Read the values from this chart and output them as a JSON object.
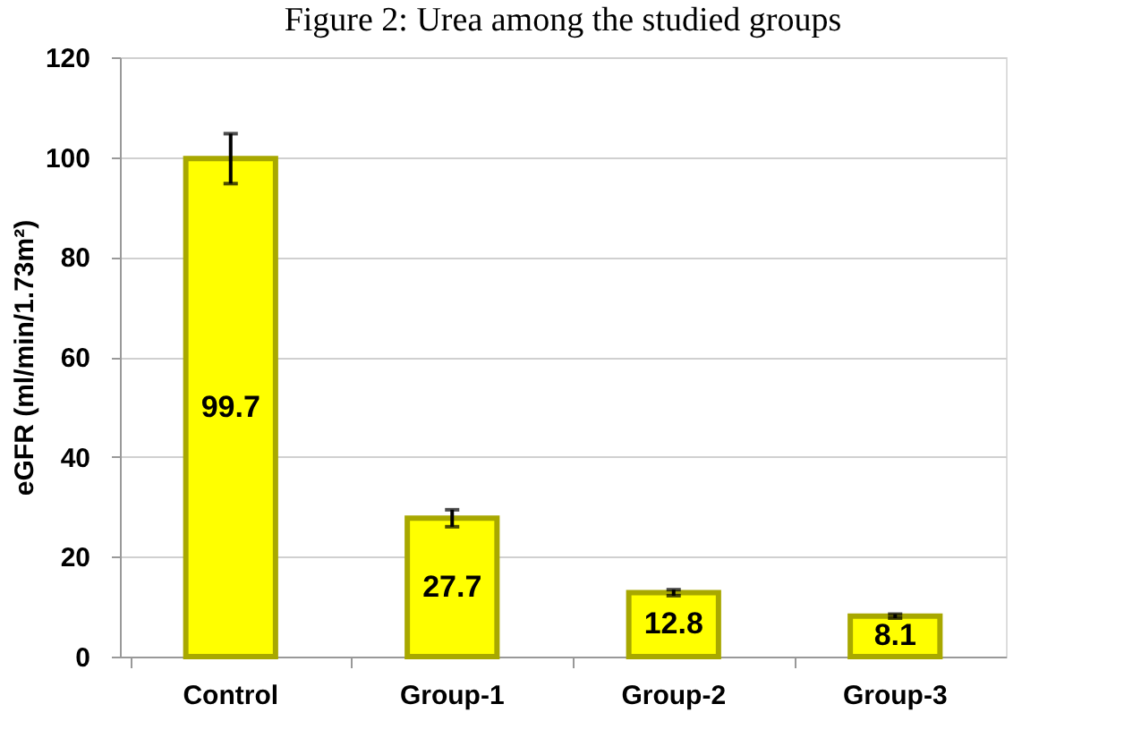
{
  "chart_data": {
    "type": "bar",
    "title": "Figure 2: Urea among the studied groups",
    "ylabel": "eGFR (ml/min/1.73m²)",
    "categories": [
      "Control",
      "Group-1",
      "Group-2",
      "Group-3"
    ],
    "values": [
      99.7,
      27.7,
      12.8,
      8.1
    ],
    "errors": [
      5,
      1.7,
      0.6,
      0.4
    ],
    "color": "#ffff00",
    "ylim": [
      0,
      120
    ],
    "yticks": [
      0,
      20,
      40,
      60,
      80,
      100,
      120
    ],
    "grid": "y",
    "data_labels": true
  }
}
